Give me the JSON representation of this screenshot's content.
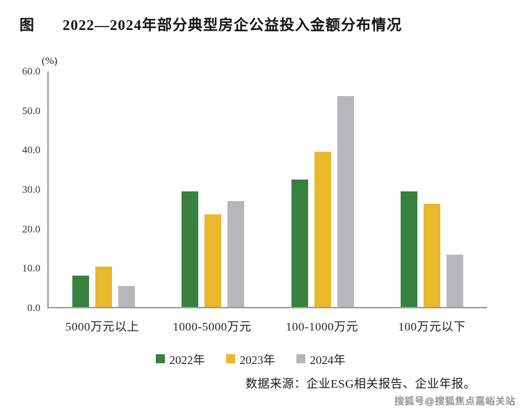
{
  "page": {
    "figure_label": "图",
    "title": "2022—2024年部分典型房企公益投入金额分布情况"
  },
  "chart_data": {
    "type": "bar",
    "title": "2022—2024年部分典型房企公益投入金额分布情况",
    "unit_label": "(%)",
    "categories": [
      "5000万元以上",
      "1000-5000万元",
      "100-1000万元",
      "100万元以下"
    ],
    "series": [
      {
        "name": "2022年",
        "color": "#37813F",
        "values": [
          8.0,
          29.5,
          32.5,
          29.5
        ]
      },
      {
        "name": "2023年",
        "color": "#EAB82B",
        "values": [
          10.3,
          23.7,
          39.5,
          26.3
        ]
      },
      {
        "name": "2024年",
        "color": "#B7B6B9",
        "values": [
          5.4,
          26.9,
          53.8,
          13.4
        ]
      }
    ],
    "ylim": [
      0,
      60
    ],
    "yticks": [
      "60.0",
      "50.0",
      "40.0",
      "30.0",
      "20.0",
      "10.0",
      "0.0"
    ],
    "grid": false,
    "legend_position": "bottom",
    "axis_color": "#9b9b9b"
  },
  "source": {
    "text": "数据来源：企业ESG相关报告、企业年报。"
  },
  "watermark": {
    "text": "搜狐号@搜狐焦点嘉峪关站"
  }
}
